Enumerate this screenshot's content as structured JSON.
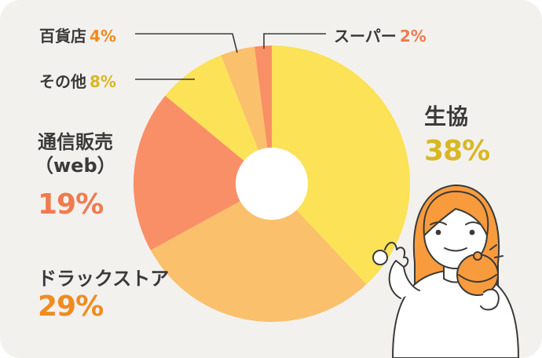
{
  "colors": {
    "background": "#f3f1ee",
    "text": "#3a3a3a",
    "leader_line": "#3a3a3a"
  },
  "chart_data": {
    "type": "pie",
    "style": "donut",
    "start": "12 o'clock, clockwise",
    "slices": [
      {
        "label": "生協",
        "pct_label": "38%",
        "value": 38,
        "color": "#fbe257",
        "pct_color": "#d9b724"
      },
      {
        "label": "ドラックストア",
        "pct_label": "29%",
        "value": 29,
        "color": "#fac06b",
        "pct_color": "#ef8c20"
      },
      {
        "label": "通信販売",
        "label_sub": "（web）",
        "pct_label": "19%",
        "value": 19,
        "color": "#f98f66",
        "pct_color": "#f07a4f"
      },
      {
        "label": "その他",
        "pct_label": "8%",
        "value": 8,
        "color": "#fbe257",
        "pct_color": "#d9b724"
      },
      {
        "label": "百貨店",
        "pct_label": "4%",
        "value": 4,
        "color": "#fac06b",
        "pct_color": "#ef8c20"
      },
      {
        "label": "スーパー",
        "pct_label": "2%",
        "value": 2,
        "color": "#f98f66",
        "pct_color": "#f07a4f"
      }
    ]
  },
  "illustration": {
    "subject": "woman-with-coin-purse"
  }
}
